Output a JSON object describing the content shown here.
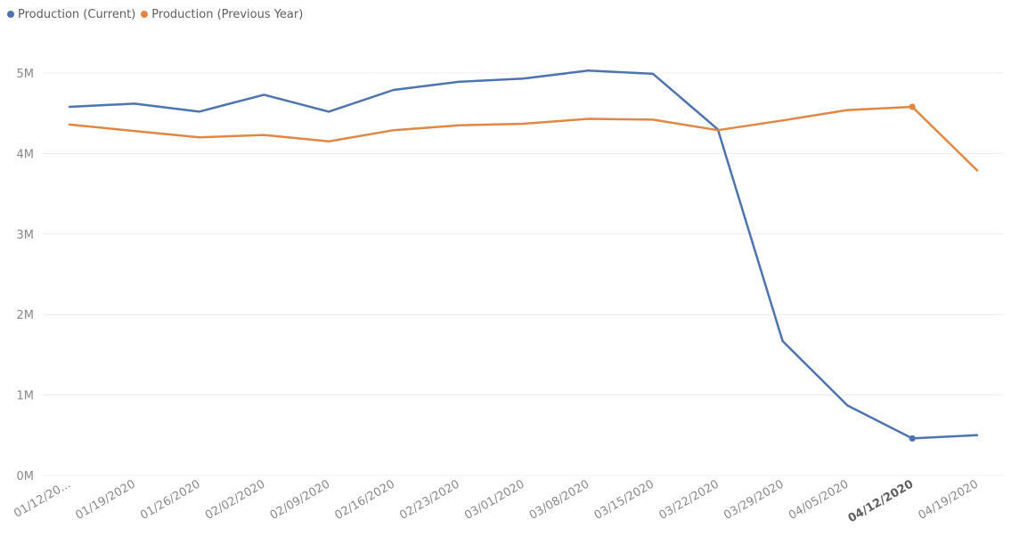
{
  "chart_data": {
    "type": "line",
    "title": "",
    "xlabel": "",
    "ylabel": "",
    "x": [
      "01/12/2020",
      "01/19/2020",
      "01/26/2020",
      "02/02/2020",
      "02/09/2020",
      "02/16/2020",
      "02/23/2020",
      "03/01/2020",
      "03/08/2020",
      "03/15/2020",
      "03/22/2020",
      "03/29/2020",
      "04/05/2020",
      "04/12/2020",
      "04/19/2020"
    ],
    "x_tick_labels": [
      "01/12/20...",
      "01/19/2020",
      "01/26/2020",
      "02/02/2020",
      "02/09/2020",
      "02/16/2020",
      "02/23/2020",
      "03/01/2020",
      "03/08/2020",
      "03/15/2020",
      "03/22/2020",
      "03/29/2020",
      "04/05/2020",
      "04/12/2020",
      "04/19/2020"
    ],
    "highlighted_x": "04/12/2020",
    "ylim": [
      0,
      5000000
    ],
    "y_ticks": [
      0,
      1000000,
      2000000,
      3000000,
      4000000,
      5000000
    ],
    "y_tick_labels": [
      "0M",
      "1M",
      "2M",
      "3M",
      "4M",
      "5M"
    ],
    "grid": true,
    "legend_position": "top-left",
    "series": [
      {
        "name": "Production (Current)",
        "color": "#4e74b0",
        "values": [
          4580000,
          4620000,
          4520000,
          4730000,
          4520000,
          4790000,
          4890000,
          4930000,
          5030000,
          4990000,
          4300000,
          1670000,
          870000,
          460000,
          500000
        ]
      },
      {
        "name": "Production (Previous Year)",
        "color": "#e08743",
        "values": [
          4360000,
          4280000,
          4200000,
          4230000,
          4150000,
          4290000,
          4350000,
          4370000,
          4430000,
          4420000,
          4290000,
          4410000,
          4540000,
          4580000,
          3790000
        ]
      }
    ]
  }
}
